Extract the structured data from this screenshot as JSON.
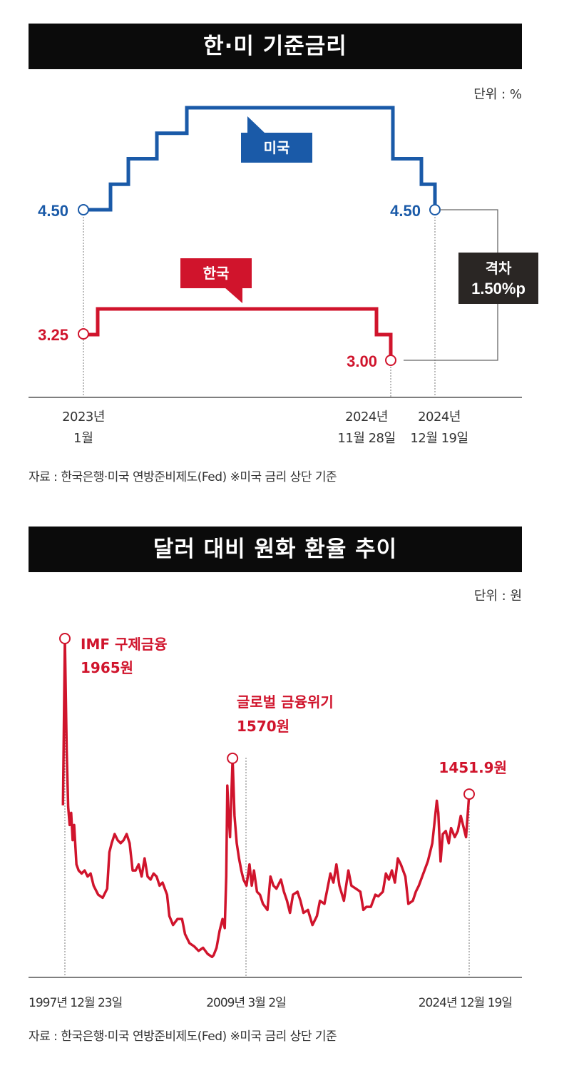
{
  "chart1": {
    "title": "한·미 기준금리",
    "unit": "단위 : %",
    "source": "자료 : 한국은행·미국 연방준비제도(Fed) ※미국 금리 상단 기준",
    "gap_label_line1": "격차",
    "gap_label_line2": "1.50%p",
    "x_tick_labels": [
      {
        "line1": "2023년",
        "line2": "1월"
      },
      {
        "line1": "2024년",
        "line2": "11월 28일"
      },
      {
        "line1": "2024년",
        "line2": "12월 19일"
      }
    ],
    "chart_data": {
      "type": "line",
      "line_shape": "step",
      "series": [
        {
          "name": "미국",
          "color": "#1a5aa8",
          "points": [
            {
              "date": "2023-01",
              "value": 4.5
            },
            {
              "date": "2023-02",
              "value": 4.75
            },
            {
              "date": "2023-03",
              "value": 5.0
            },
            {
              "date": "2023-05",
              "value": 5.25
            },
            {
              "date": "2023-07",
              "value": 5.5
            },
            {
              "date": "2024-09",
              "value": 5.0
            },
            {
              "date": "2024-11",
              "value": 4.75
            },
            {
              "date": "2024-12-19",
              "value": 4.5
            }
          ],
          "start_label": "4.50",
          "end_label": "4.50"
        },
        {
          "name": "한국",
          "color": "#d0142c",
          "points": [
            {
              "date": "2023-01",
              "value": 3.25
            },
            {
              "date": "2023-01-13",
              "value": 3.5
            },
            {
              "date": "2024-10",
              "value": 3.25
            },
            {
              "date": "2024-11-28",
              "value": 3.0
            }
          ],
          "start_label": "3.25",
          "end_label": "3.00"
        }
      ]
    }
  },
  "chart2": {
    "title": "달러 대비 원화 환율 추이",
    "unit": "단위 : 원",
    "source": "자료 : 한국은행·미국 연방준비제도(Fed) ※미국 금리 상단 기준",
    "x_tick_labels": [
      "1997년 12월 23일",
      "2009년 3월 2일",
      "2024년 12월 19일"
    ],
    "annotations": [
      {
        "line1": "IMF 구제금융",
        "line2": "1965원"
      },
      {
        "line1": "글로벌 금융위기",
        "line2": "1570원"
      },
      {
        "line1": "1451.9원",
        "line2": ""
      }
    ],
    "chart_data": {
      "type": "line",
      "color": "#d0142c",
      "series": [
        {
          "values": [
            [
              1997.85,
              1415
            ],
            [
              1997.98,
              1965
            ],
            [
              1998.1,
              1600
            ],
            [
              1998.2,
              1410
            ],
            [
              1998.3,
              1350
            ],
            [
              1998.4,
              1390
            ],
            [
              1998.5,
              1300
            ],
            [
              1998.6,
              1350
            ],
            [
              1998.75,
              1220
            ],
            [
              1998.9,
              1200
            ],
            [
              1999.1,
              1190
            ],
            [
              1999.3,
              1200
            ],
            [
              1999.5,
              1180
            ],
            [
              1999.7,
              1190
            ],
            [
              1999.9,
              1150
            ],
            [
              2000.2,
              1120
            ],
            [
              2000.5,
              1110
            ],
            [
              2000.8,
              1140
            ],
            [
              2000.95,
              1260
            ],
            [
              2001.1,
              1290
            ],
            [
              2001.3,
              1320
            ],
            [
              2001.5,
              1300
            ],
            [
              2001.7,
              1290
            ],
            [
              2001.9,
              1300
            ],
            [
              2002.1,
              1320
            ],
            [
              2002.3,
              1290
            ],
            [
              2002.5,
              1200
            ],
            [
              2002.7,
              1200
            ],
            [
              2002.9,
              1220
            ],
            [
              2003.1,
              1180
            ],
            [
              2003.3,
              1240
            ],
            [
              2003.5,
              1180
            ],
            [
              2003.7,
              1170
            ],
            [
              2003.9,
              1190
            ],
            [
              2004.1,
              1180
            ],
            [
              2004.3,
              1150
            ],
            [
              2004.5,
              1160
            ],
            [
              2004.8,
              1120
            ],
            [
              2004.95,
              1050
            ],
            [
              2005.2,
              1020
            ],
            [
              2005.5,
              1040
            ],
            [
              2005.8,
              1040
            ],
            [
              2006.0,
              990
            ],
            [
              2006.3,
              960
            ],
            [
              2006.6,
              950
            ],
            [
              2006.9,
              935
            ],
            [
              2007.2,
              945
            ],
            [
              2007.5,
              925
            ],
            [
              2007.8,
              915
            ],
            [
              2007.9,
              920
            ],
            [
              2008.1,
              945
            ],
            [
              2008.3,
              1000
            ],
            [
              2008.5,
              1040
            ],
            [
              2008.65,
              1010
            ],
            [
              2008.75,
              1180
            ],
            [
              2008.82,
              1480
            ],
            [
              2008.9,
              1390
            ],
            [
              2009.0,
              1310
            ],
            [
              2009.17,
              1570
            ],
            [
              2009.3,
              1380
            ],
            [
              2009.45,
              1290
            ],
            [
              2009.6,
              1240
            ],
            [
              2009.75,
              1200
            ],
            [
              2009.9,
              1170
            ],
            [
              2010.1,
              1150
            ],
            [
              2010.3,
              1220
            ],
            [
              2010.45,
              1150
            ],
            [
              2010.6,
              1200
            ],
            [
              2010.8,
              1130
            ],
            [
              2011.0,
              1120
            ],
            [
              2011.2,
              1090
            ],
            [
              2011.5,
              1070
            ],
            [
              2011.7,
              1180
            ],
            [
              2011.9,
              1150
            ],
            [
              2012.1,
              1140
            ],
            [
              2012.4,
              1170
            ],
            [
              2012.6,
              1130
            ],
            [
              2012.8,
              1100
            ],
            [
              2013.0,
              1060
            ],
            [
              2013.2,
              1120
            ],
            [
              2013.5,
              1130
            ],
            [
              2013.7,
              1100
            ],
            [
              2013.9,
              1060
            ],
            [
              2014.2,
              1070
            ],
            [
              2014.5,
              1020
            ],
            [
              2014.8,
              1050
            ],
            [
              2015.0,
              1100
            ],
            [
              2015.3,
              1090
            ],
            [
              2015.5,
              1140
            ],
            [
              2015.7,
              1190
            ],
            [
              2015.9,
              1160
            ],
            [
              2016.1,
              1220
            ],
            [
              2016.3,
              1150
            ],
            [
              2016.6,
              1100
            ],
            [
              2016.9,
              1200
            ],
            [
              2017.1,
              1150
            ],
            [
              2017.4,
              1140
            ],
            [
              2017.7,
              1130
            ],
            [
              2017.9,
              1070
            ],
            [
              2018.1,
              1080
            ],
            [
              2018.4,
              1080
            ],
            [
              2018.7,
              1120
            ],
            [
              2018.9,
              1115
            ],
            [
              2019.2,
              1130
            ],
            [
              2019.4,
              1190
            ],
            [
              2019.6,
              1170
            ],
            [
              2019.8,
              1200
            ],
            [
              2020.0,
              1160
            ],
            [
              2020.2,
              1240
            ],
            [
              2020.4,
              1220
            ],
            [
              2020.7,
              1180
            ],
            [
              2020.9,
              1090
            ],
            [
              2021.2,
              1100
            ],
            [
              2021.4,
              1130
            ],
            [
              2021.6,
              1150
            ],
            [
              2021.9,
              1190
            ],
            [
              2022.2,
              1230
            ],
            [
              2022.5,
              1290
            ],
            [
              2022.8,
              1430
            ],
            [
              2022.9,
              1390
            ],
            [
              2023.05,
              1230
            ],
            [
              2023.2,
              1320
            ],
            [
              2023.4,
              1330
            ],
            [
              2023.6,
              1290
            ],
            [
              2023.75,
              1340
            ],
            [
              2024.0,
              1310
            ],
            [
              2024.2,
              1330
            ],
            [
              2024.4,
              1380
            ],
            [
              2024.6,
              1340
            ],
            [
              2024.75,
              1310
            ],
            [
              2024.96,
              1451.9
            ]
          ]
        }
      ],
      "marked_points": [
        [
          1997.98,
          1965
        ],
        [
          2009.17,
          1570
        ],
        [
          2024.96,
          1451.9
        ]
      ]
    }
  }
}
